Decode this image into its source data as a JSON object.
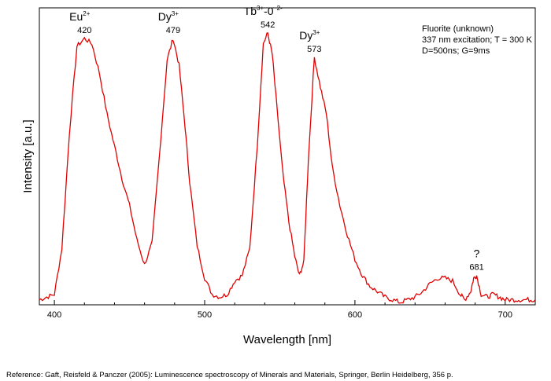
{
  "chart_data": {
    "type": "line",
    "xlabel": "Wavelength [nm]",
    "ylabel": "Intensity [a.u.]",
    "xlim": [
      390,
      720
    ],
    "xticks": [
      400,
      500,
      600,
      700
    ],
    "yticks_labeled": false,
    "grid": false,
    "line_color": "#e00000",
    "series": [
      {
        "x": [
          390,
          395,
          400,
          405,
          410,
          415,
          420,
          425,
          430,
          435,
          440,
          445,
          450,
          455,
          460,
          465,
          470,
          475,
          479,
          483,
          487,
          490,
          495,
          500,
          505,
          510,
          515,
          520,
          525,
          530,
          535,
          539,
          542,
          545,
          548,
          552,
          556,
          560,
          563,
          566,
          569,
          573,
          577,
          581,
          585,
          590,
          595,
          600,
          605,
          610,
          615,
          620,
          625,
          630,
          635,
          640,
          645,
          650,
          655,
          660,
          665,
          670,
          673,
          677,
          679,
          681,
          684,
          688,
          692,
          696,
          700,
          705,
          710,
          715,
          720
        ],
        "y": [
          1,
          2,
          3,
          20,
          63,
          95,
          98,
          96,
          85,
          70,
          58,
          46,
          36,
          23,
          14,
          22,
          55,
          90,
          98,
          88,
          65,
          45,
          21,
          9,
          3,
          2,
          3,
          8,
          10,
          20,
          58,
          96,
          100,
          92,
          73,
          48,
          30,
          17,
          10,
          15,
          53,
          91,
          80,
          70,
          50,
          36,
          25,
          16,
          10,
          6,
          4,
          2,
          1,
          0,
          1,
          2,
          4,
          7,
          9,
          9,
          8,
          3,
          1,
          4,
          9,
          10,
          3,
          2,
          3,
          2,
          1,
          1,
          1,
          1,
          1
        ]
      }
    ],
    "peaks": [
      {
        "ion": "Eu",
        "sup": "2+",
        "label": "420",
        "x": 420,
        "y": 98
      },
      {
        "ion": "Dy",
        "sup": "3+",
        "label": "479",
        "x": 479,
        "y": 98
      },
      {
        "ion": "Tb",
        "sup": "3+",
        "ion2": "-0",
        "sup2": "2-",
        "label": "542",
        "x": 542,
        "y": 100
      },
      {
        "ion": "Dy",
        "sup": "3+",
        "label": "573",
        "x": 573,
        "y": 91
      },
      {
        "ion": "?",
        "sup": "",
        "label": "681",
        "x": 681,
        "y": 10
      }
    ]
  },
  "info": {
    "line1": "Fluorite (unknown)",
    "line2": "337 nm excitation; T = 300 K",
    "line3": "D=500ns; G=9ms"
  },
  "reference": "Reference: Gaft, Reisfeld & Panczer (2005): Luminescence spectroscopy of Minerals and Materials, Springer, Berlin Heidelberg, 356 p."
}
